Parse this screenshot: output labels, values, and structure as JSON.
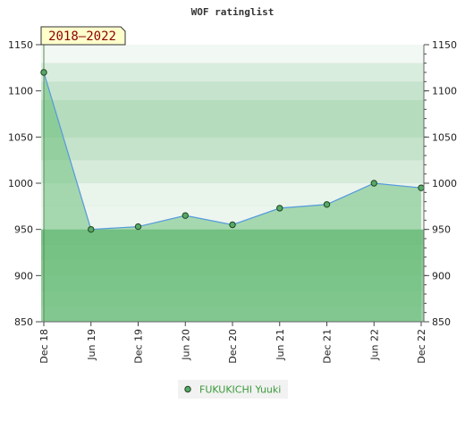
{
  "chart_data": {
    "type": "area",
    "title": "WOF ratinglist",
    "period_label": "2018–2022",
    "x": [
      "Dec 18",
      "Jun 19",
      "Dec 19",
      "Jun 20",
      "Dec 20",
      "Jun 21",
      "Dec 21",
      "Jun 22",
      "Dec 22"
    ],
    "series": [
      {
        "name": "FUKUKICHI Yuuki",
        "values": [
          1120,
          950,
          953,
          965,
          955,
          973,
          977,
          1000,
          995
        ]
      }
    ],
    "ylim": [
      850,
      1150
    ],
    "yticks": [
      850,
      900,
      950,
      1000,
      1050,
      1100,
      1150
    ],
    "grid": true,
    "legend": "bottom-center",
    "colors": {
      "line": "#5599dd",
      "marker_fill": "#55aa66",
      "marker_stroke": "#224422",
      "area_fill": "#6cbf7c",
      "band_high": "#b4dcbd",
      "band_light": "#f2f8f3",
      "band_low": "#7cc28a",
      "badge_bg": "#ffffcc",
      "badge_text": "#8b0000",
      "legend_text": "#3a9a3a"
    }
  }
}
